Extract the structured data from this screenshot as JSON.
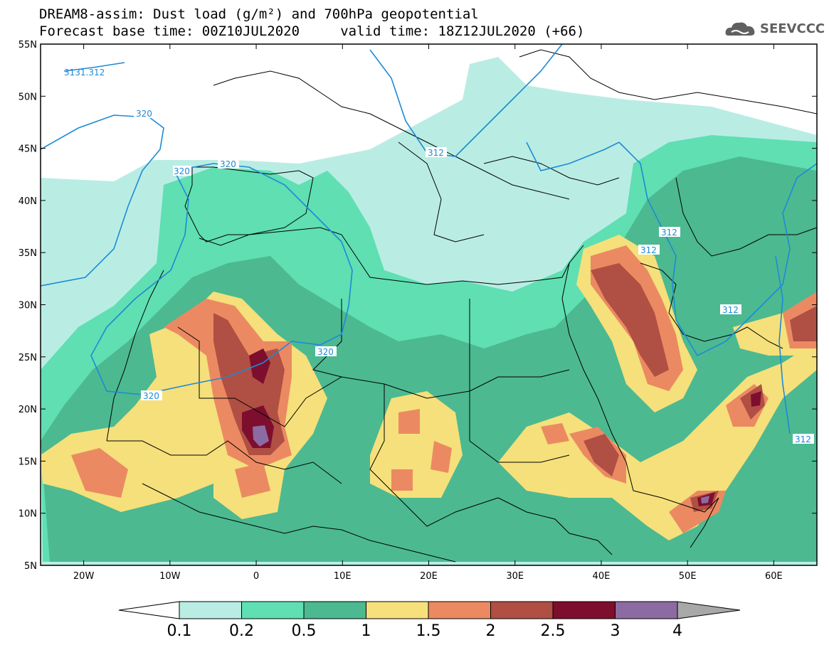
{
  "header": {
    "line1": "DREAM8-assim: Dust load (g/m²) and 700hPa geopotential",
    "line2": "Forecast base time: 00Z10JUL2020     valid time: 18Z12JUL2020 (+66)"
  },
  "logo": {
    "text": "SEEVCCC",
    "icon": "cloud-logo-icon"
  },
  "map": {
    "extent": {
      "lon_min": -25,
      "lon_max": 65,
      "lat_min": 5,
      "lat_max": 55
    },
    "lat_ticks": [
      "5N",
      "10N",
      "15N",
      "20N",
      "25N",
      "30N",
      "35N",
      "40N",
      "45N",
      "50N",
      "55N"
    ],
    "lon_ticks": [
      "20W",
      "10W",
      "0",
      "10E",
      "20E",
      "30E",
      "40E",
      "50E",
      "60E"
    ],
    "contour_labels": [
      "3131.312",
      "320",
      "320",
      "320",
      "320",
      "320",
      "312",
      "312",
      "312",
      "312",
      "312"
    ],
    "colors": {
      "c01": "#b9ede4",
      "c02": "#5fdfb2",
      "c05": "#4cb991",
      "c1": "#f5e07b",
      "c15": "#eb8a62",
      "c2": "#b04f43",
      "c25": "#7e0e2e",
      "c3": "#8c6ba2",
      "c4": "#a8a8a8",
      "contour": "#1e8ad6"
    }
  },
  "colorbar": {
    "labels": [
      "0.1",
      "0.2",
      "0.5",
      "1",
      "1.5",
      "2",
      "2.5",
      "3",
      "4"
    ],
    "colors": [
      "#b9ede4",
      "#5fdfb2",
      "#4cb991",
      "#f5e07b",
      "#eb8a62",
      "#b04f43",
      "#7e0e2e",
      "#8c6ba2"
    ]
  }
}
